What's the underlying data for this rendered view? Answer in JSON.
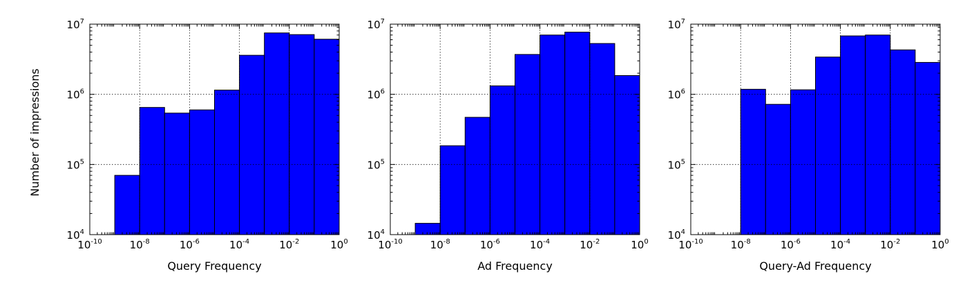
{
  "figure": {
    "ylabel": "Number of impressions",
    "bar_color": "#0000ff"
  },
  "chart_data": [
    {
      "type": "bar",
      "xlabel": "Query Frequency",
      "ylabel": "Number of impressions",
      "x_scale": "log",
      "y_scale": "log",
      "xlim": [
        1e-10,
        1
      ],
      "ylim": [
        10000,
        10000000
      ],
      "x_ticks": [
        {
          "base": "10",
          "exp": "-10"
        },
        {
          "base": "10",
          "exp": "-8"
        },
        {
          "base": "10",
          "exp": "-6"
        },
        {
          "base": "10",
          "exp": "-4"
        },
        {
          "base": "10",
          "exp": "-2"
        },
        {
          "base": "10",
          "exp": "0"
        }
      ],
      "y_ticks": [
        {
          "base": "10",
          "exp": "4"
        },
        {
          "base": "10",
          "exp": "5"
        },
        {
          "base": "10",
          "exp": "6"
        },
        {
          "base": "10",
          "exp": "7"
        }
      ],
      "grid": true,
      "bins": [
        {
          "from": 1e-09,
          "to": 1e-08,
          "value": 70000
        },
        {
          "from": 1e-08,
          "to": 1e-07,
          "value": 650000
        },
        {
          "from": 1e-07,
          "to": 1e-06,
          "value": 540000
        },
        {
          "from": 1e-06,
          "to": 1e-05,
          "value": 600000
        },
        {
          "from": 1e-05,
          "to": 0.0001,
          "value": 1150000
        },
        {
          "from": 0.0001,
          "to": 0.001,
          "value": 3600000
        },
        {
          "from": 0.001,
          "to": 0.01,
          "value": 7500000
        },
        {
          "from": 0.01,
          "to": 0.1,
          "value": 7100000
        },
        {
          "from": 0.1,
          "to": 1,
          "value": 6100000
        }
      ]
    },
    {
      "type": "bar",
      "xlabel": "Ad Frequency",
      "ylabel": "",
      "x_scale": "log",
      "y_scale": "log",
      "xlim": [
        1e-10,
        1
      ],
      "ylim": [
        10000,
        10000000
      ],
      "x_ticks": [
        {
          "base": "10",
          "exp": "-10"
        },
        {
          "base": "10",
          "exp": "-8"
        },
        {
          "base": "10",
          "exp": "-6"
        },
        {
          "base": "10",
          "exp": "-4"
        },
        {
          "base": "10",
          "exp": "-2"
        },
        {
          "base": "10",
          "exp": "0"
        }
      ],
      "y_ticks": [
        {
          "base": "10",
          "exp": "4"
        },
        {
          "base": "10",
          "exp": "5"
        },
        {
          "base": "10",
          "exp": "6"
        },
        {
          "base": "10",
          "exp": "7"
        }
      ],
      "grid": true,
      "bins": [
        {
          "from": 1e-09,
          "to": 1e-08,
          "value": 14500
        },
        {
          "from": 1e-08,
          "to": 1e-07,
          "value": 185000
        },
        {
          "from": 1e-07,
          "to": 1e-06,
          "value": 470000
        },
        {
          "from": 1e-06,
          "to": 1e-05,
          "value": 1320000
        },
        {
          "from": 1e-05,
          "to": 0.0001,
          "value": 3700000
        },
        {
          "from": 0.0001,
          "to": 0.001,
          "value": 7000000
        },
        {
          "from": 0.001,
          "to": 0.01,
          "value": 7700000
        },
        {
          "from": 0.01,
          "to": 0.1,
          "value": 5300000
        },
        {
          "from": 0.1,
          "to": 1,
          "value": 1850000
        }
      ]
    },
    {
      "type": "bar",
      "xlabel": "Query-Ad Frequency",
      "ylabel": "",
      "x_scale": "log",
      "y_scale": "log",
      "xlim": [
        1e-10,
        1
      ],
      "ylim": [
        10000,
        10000000
      ],
      "x_ticks": [
        {
          "base": "10",
          "exp": "-10"
        },
        {
          "base": "10",
          "exp": "-8"
        },
        {
          "base": "10",
          "exp": "-6"
        },
        {
          "base": "10",
          "exp": "-4"
        },
        {
          "base": "10",
          "exp": "-2"
        },
        {
          "base": "10",
          "exp": "0"
        }
      ],
      "y_ticks": [
        {
          "base": "10",
          "exp": "4"
        },
        {
          "base": "10",
          "exp": "5"
        },
        {
          "base": "10",
          "exp": "6"
        },
        {
          "base": "10",
          "exp": "7"
        }
      ],
      "grid": true,
      "bins": [
        {
          "from": 1e-08,
          "to": 1e-07,
          "value": 1180000
        },
        {
          "from": 1e-07,
          "to": 1e-06,
          "value": 720000
        },
        {
          "from": 1e-06,
          "to": 1e-05,
          "value": 1160000
        },
        {
          "from": 1e-05,
          "to": 0.0001,
          "value": 3400000
        },
        {
          "from": 0.0001,
          "to": 0.001,
          "value": 6800000
        },
        {
          "from": 0.001,
          "to": 0.01,
          "value": 7000000
        },
        {
          "from": 0.01,
          "to": 0.1,
          "value": 4300000
        },
        {
          "from": 0.1,
          "to": 1,
          "value": 2850000
        }
      ]
    }
  ]
}
